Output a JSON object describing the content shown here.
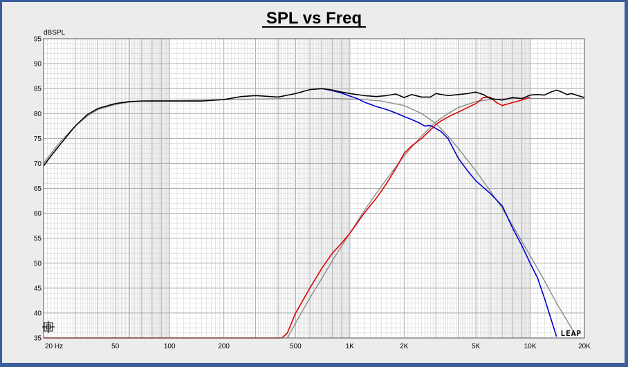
{
  "chart_data": {
    "type": "line",
    "title": "SPL vs Freq",
    "ylabel": "dBSPL",
    "xlabel": "",
    "x_scale": "log",
    "xlim": [
      20,
      20000
    ],
    "ylim": [
      35,
      95
    ],
    "grid": true,
    "x_tick_labels": [
      {
        "value": 20,
        "label": "20 Hz"
      },
      {
        "value": 50,
        "label": "50"
      },
      {
        "value": 100,
        "label": "100"
      },
      {
        "value": 200,
        "label": "200"
      },
      {
        "value": 500,
        "label": "500"
      },
      {
        "value": 1000,
        "label": "1K"
      },
      {
        "value": 2000,
        "label": "2K"
      },
      {
        "value": 5000,
        "label": "5K"
      },
      {
        "value": 10000,
        "label": "10K"
      },
      {
        "value": 20000,
        "label": "20K"
      }
    ],
    "y_ticks": [
      35,
      40,
      45,
      50,
      55,
      60,
      65,
      70,
      75,
      80,
      85,
      90,
      95
    ],
    "colors": {
      "black": "#000000",
      "blue": "#0000cc",
      "red": "#dd0000",
      "gray": "#8a8a8a",
      "background": "#ffffff",
      "grid": "#b4b4b4"
    },
    "series": [
      {
        "color": "#000000",
        "points": [
          [
            20,
            69.5
          ],
          [
            22,
            71.5
          ],
          [
            25,
            74
          ],
          [
            30,
            77.5
          ],
          [
            35,
            79.8
          ],
          [
            40,
            81
          ],
          [
            50,
            82
          ],
          [
            60,
            82.4
          ],
          [
            70,
            82.5
          ],
          [
            80,
            82.5
          ],
          [
            100,
            82.5
          ],
          [
            150,
            82.5
          ],
          [
            200,
            82.8
          ],
          [
            250,
            83.4
          ],
          [
            300,
            83.6
          ],
          [
            400,
            83.3
          ],
          [
            500,
            84
          ],
          [
            600,
            84.8
          ],
          [
            700,
            85
          ],
          [
            800,
            84.7
          ],
          [
            900,
            84.3
          ],
          [
            1000,
            84
          ],
          [
            1200,
            83.6
          ],
          [
            1400,
            83.4
          ],
          [
            1600,
            83.6
          ],
          [
            1800,
            83.9
          ],
          [
            2000,
            83.2
          ],
          [
            2200,
            83.8
          ],
          [
            2500,
            83.3
          ],
          [
            2800,
            83.3
          ],
          [
            3000,
            84
          ],
          [
            3500,
            83.6
          ],
          [
            4000,
            83.8
          ],
          [
            4500,
            84
          ],
          [
            5000,
            84.3
          ],
          [
            5500,
            83.8
          ],
          [
            6000,
            83
          ],
          [
            7000,
            82.7
          ],
          [
            8000,
            83.2
          ],
          [
            9000,
            83
          ],
          [
            10000,
            83.7
          ],
          [
            11000,
            83.8
          ],
          [
            12000,
            83.7
          ],
          [
            13000,
            84.3
          ],
          [
            14000,
            84.7
          ],
          [
            15000,
            84.3
          ],
          [
            16000,
            83.8
          ],
          [
            17000,
            84
          ],
          [
            18000,
            83.7
          ],
          [
            20000,
            83.2
          ]
        ]
      },
      {
        "color": "#0000cc",
        "points": [
          [
            600,
            84.8
          ],
          [
            700,
            85
          ],
          [
            800,
            84.6
          ],
          [
            900,
            84.1
          ],
          [
            1000,
            83.5
          ],
          [
            1100,
            83
          ],
          [
            1200,
            82.3
          ],
          [
            1400,
            81.4
          ],
          [
            1600,
            80.8
          ],
          [
            1800,
            80.1
          ],
          [
            2000,
            79.4
          ],
          [
            2200,
            78.8
          ],
          [
            2400,
            78.2
          ],
          [
            2600,
            77.5
          ],
          [
            2800,
            77.6
          ],
          [
            3000,
            77
          ],
          [
            3200,
            76.4
          ],
          [
            3500,
            75
          ],
          [
            4000,
            71
          ],
          [
            4500,
            68.5
          ],
          [
            5000,
            66.5
          ],
          [
            6000,
            64
          ],
          [
            7000,
            61.5
          ],
          [
            8000,
            57
          ],
          [
            9000,
            53.5
          ],
          [
            10000,
            50
          ],
          [
            11000,
            47
          ],
          [
            12000,
            43
          ],
          [
            13000,
            39
          ],
          [
            14000,
            35.3
          ]
        ]
      },
      {
        "color": "#dd0000",
        "points": [
          [
            20,
            35
          ],
          [
            420,
            35
          ],
          [
            450,
            36
          ],
          [
            500,
            40
          ],
          [
            600,
            45
          ],
          [
            700,
            49
          ],
          [
            800,
            52
          ],
          [
            900,
            54
          ],
          [
            1000,
            56
          ],
          [
            1200,
            60
          ],
          [
            1400,
            63
          ],
          [
            1600,
            66
          ],
          [
            1800,
            69
          ],
          [
            2000,
            72
          ],
          [
            2200,
            73.5
          ],
          [
            2500,
            75
          ],
          [
            2800,
            76.7
          ],
          [
            3000,
            77.8
          ],
          [
            3200,
            78.5
          ],
          [
            3500,
            79.3
          ],
          [
            4000,
            80.3
          ],
          [
            4500,
            81.2
          ],
          [
            5000,
            82
          ],
          [
            5500,
            83.2
          ],
          [
            6000,
            83.3
          ],
          [
            6500,
            82.2
          ],
          [
            7000,
            81.6
          ],
          [
            8000,
            82.2
          ],
          [
            9000,
            82.7
          ],
          [
            10000,
            83.3
          ]
        ]
      },
      {
        "color": "#8a8a8a",
        "points": [
          [
            20,
            70
          ],
          [
            22,
            72
          ],
          [
            25,
            74.5
          ],
          [
            30,
            77.5
          ],
          [
            35,
            79.5
          ],
          [
            40,
            80.8
          ],
          [
            50,
            81.8
          ],
          [
            60,
            82.3
          ],
          [
            70,
            82.5
          ],
          [
            80,
            82.6
          ],
          [
            100,
            82.6
          ],
          [
            200,
            82.8
          ],
          [
            500,
            83
          ],
          [
            800,
            83
          ],
          [
            1000,
            82.9
          ],
          [
            1200,
            82.8
          ],
          [
            1500,
            82.5
          ],
          [
            2000,
            81.6
          ],
          [
            2500,
            80
          ],
          [
            3000,
            78
          ],
          [
            3500,
            75.5
          ],
          [
            4000,
            73
          ],
          [
            5000,
            68.5
          ],
          [
            6000,
            64.5
          ],
          [
            7000,
            61
          ],
          [
            8000,
            57.5
          ],
          [
            10000,
            51.5
          ],
          [
            12000,
            46.5
          ],
          [
            14000,
            42
          ],
          [
            16000,
            38.5
          ],
          [
            18000,
            35.5
          ]
        ]
      },
      {
        "color": "#8a8a8a",
        "points": [
          [
            450,
            35
          ],
          [
            500,
            38
          ],
          [
            600,
            43
          ],
          [
            700,
            47
          ],
          [
            800,
            50.5
          ],
          [
            1000,
            56
          ],
          [
            1200,
            60.5
          ],
          [
            1500,
            65.5
          ],
          [
            2000,
            71.5
          ],
          [
            2500,
            75.5
          ],
          [
            3000,
            78.3
          ],
          [
            3500,
            80
          ],
          [
            4000,
            81.2
          ],
          [
            5000,
            82.4
          ],
          [
            6000,
            82.8
          ],
          [
            8000,
            83
          ],
          [
            10000,
            83
          ],
          [
            20000,
            83
          ]
        ]
      }
    ]
  },
  "logo_text": "LEAP"
}
